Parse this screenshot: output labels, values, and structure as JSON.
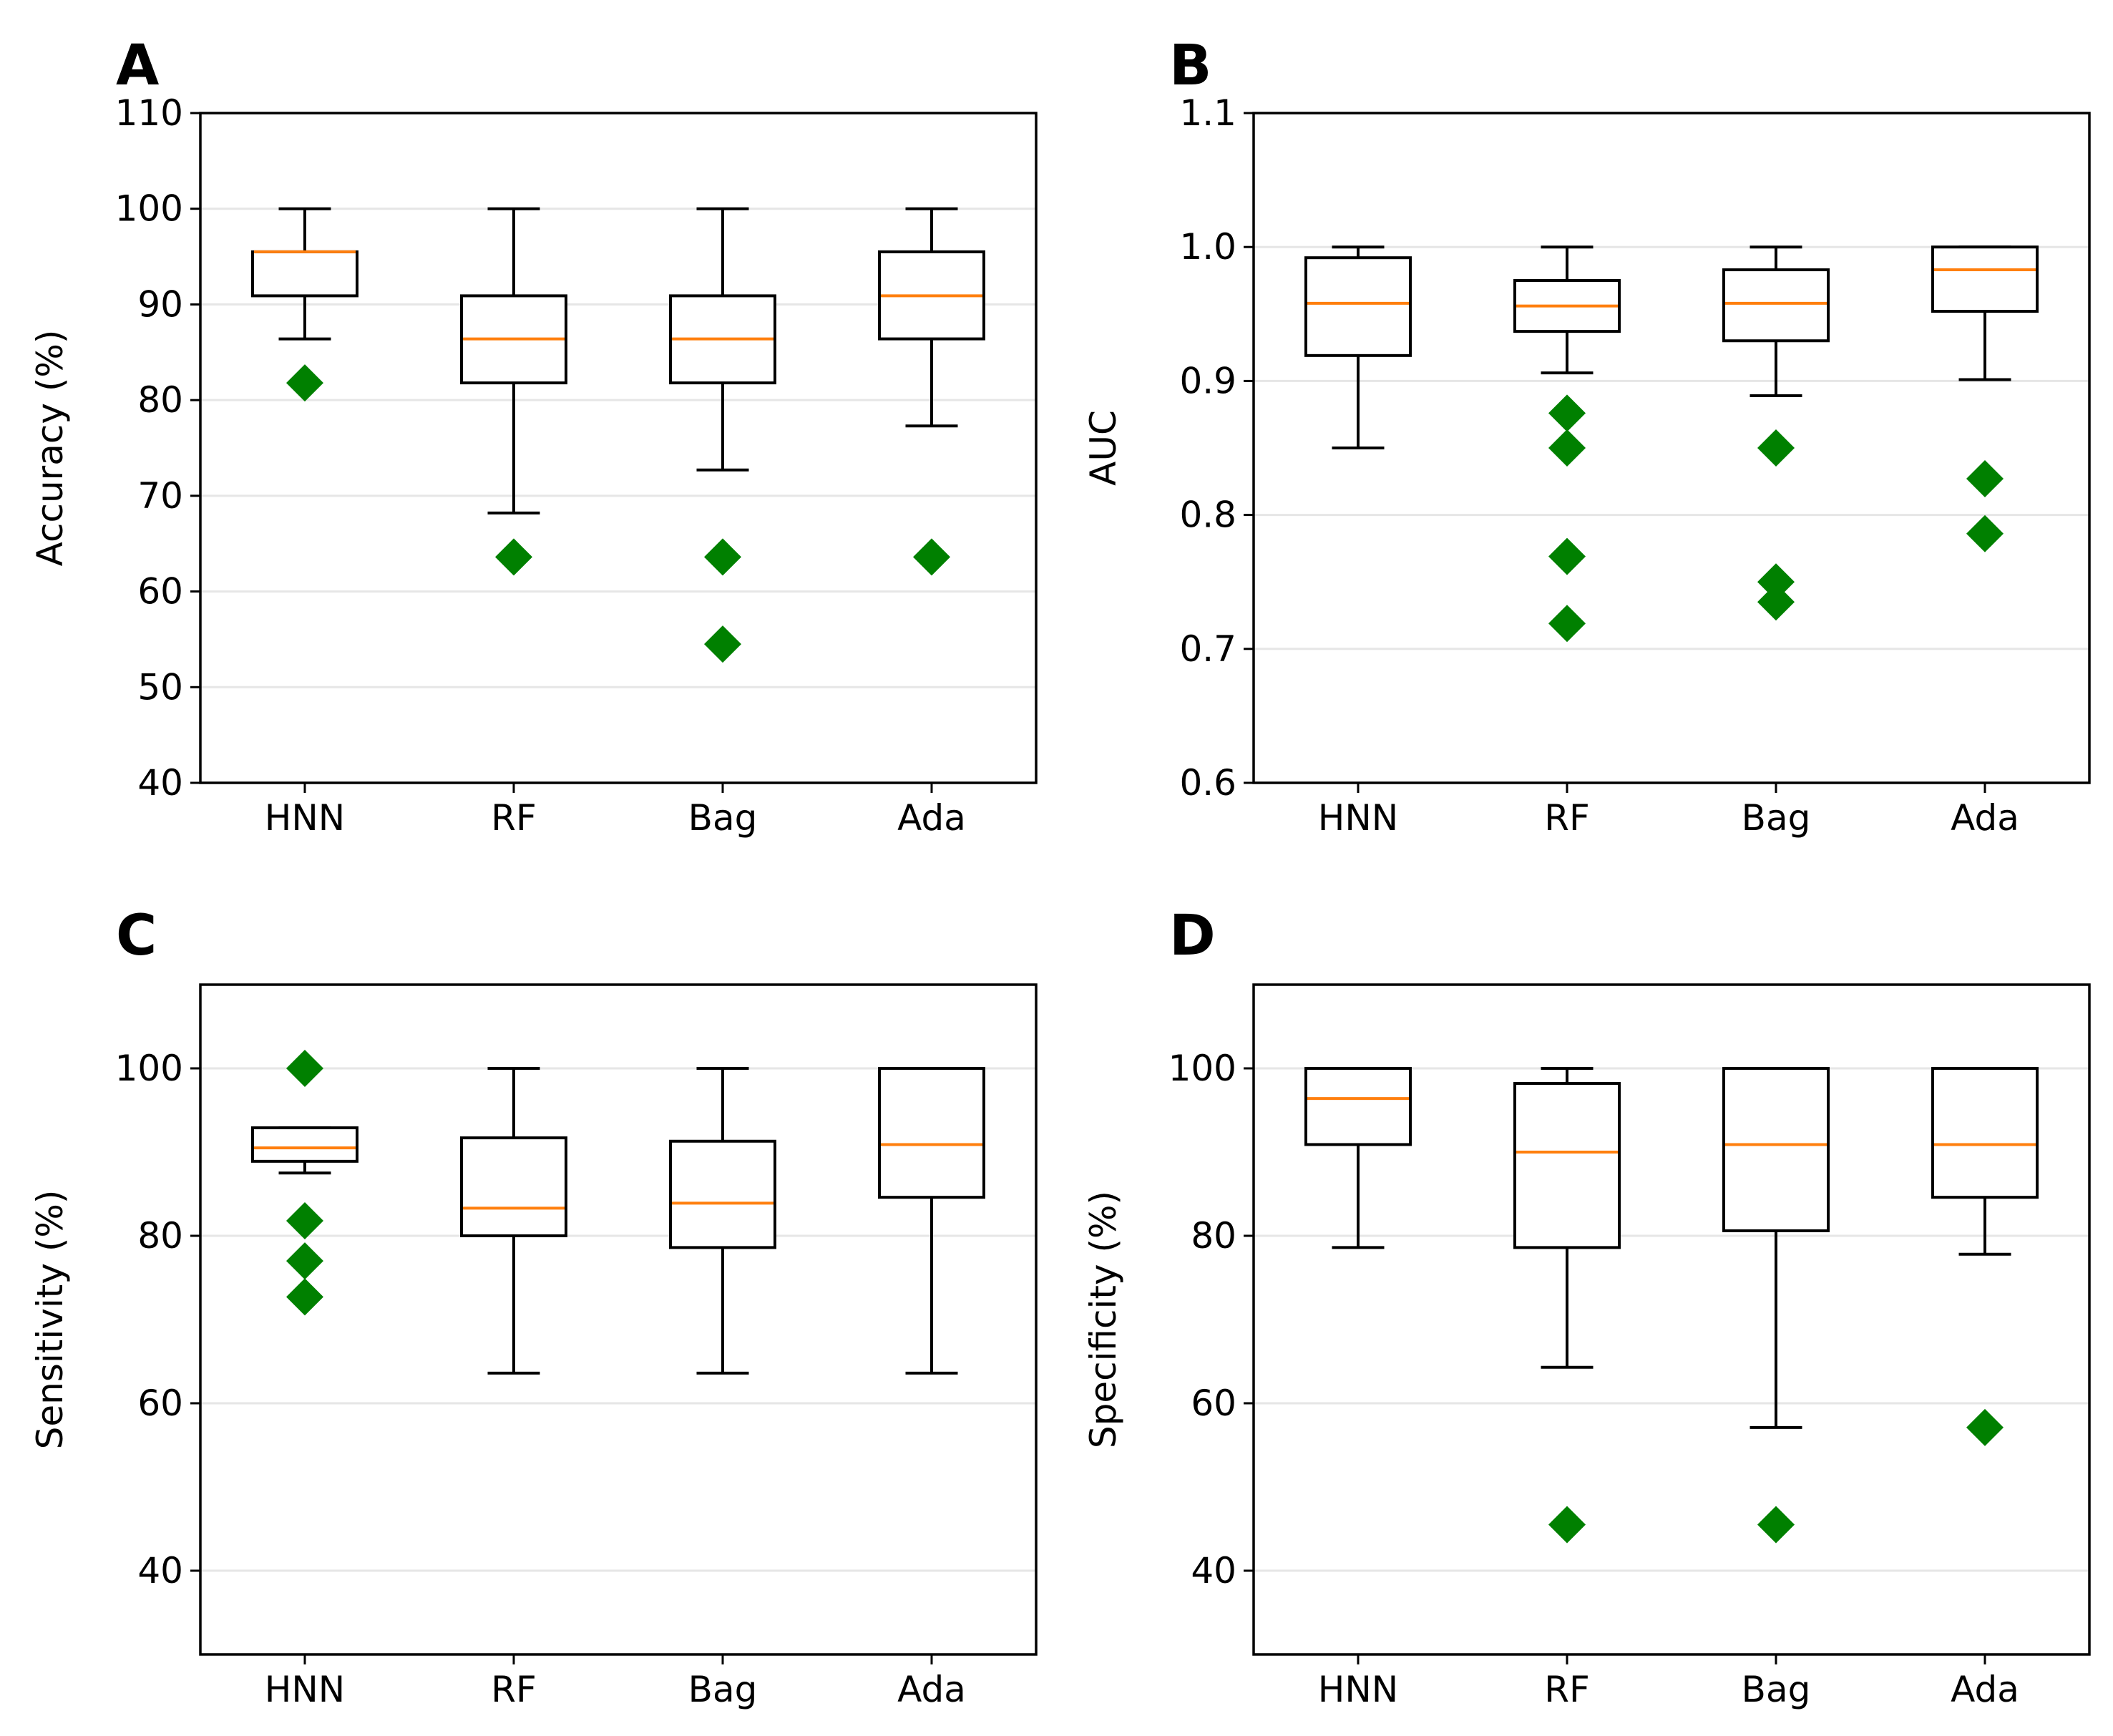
{
  "chart_data": [
    {
      "type": "box",
      "panel": "A",
      "ylabel": "Accuracy (%)",
      "ylim": [
        40,
        110
      ],
      "yticks": [
        40,
        50,
        60,
        70,
        80,
        90,
        100,
        110
      ],
      "grid": "horizontal",
      "categories": [
        "HNN",
        "RF",
        "Bag",
        "Ada"
      ],
      "boxes": [
        {
          "whislo": 86.4,
          "q1": 90.9,
          "med": 95.5,
          "q3": 95.5,
          "whishi": 100,
          "fliers": [
            81.8
          ]
        },
        {
          "whislo": 68.2,
          "q1": 81.8,
          "med": 86.4,
          "q3": 90.9,
          "whishi": 100,
          "fliers": [
            63.6
          ]
        },
        {
          "whislo": 72.7,
          "q1": 81.8,
          "med": 86.4,
          "q3": 90.9,
          "whishi": 100,
          "fliers": [
            63.6,
            54.5
          ]
        },
        {
          "whislo": 77.3,
          "q1": 86.4,
          "med": 90.9,
          "q3": 95.5,
          "whishi": 100,
          "fliers": [
            63.6
          ]
        }
      ]
    },
    {
      "type": "box",
      "panel": "B",
      "ylabel": "AUC",
      "ylim": [
        0.6,
        1.1
      ],
      "yticks": [
        0.6,
        0.7,
        0.8,
        0.9,
        1.0,
        1.1
      ],
      "ytick_labels": [
        "0.6",
        "0.7",
        "0.8",
        "0.9",
        "1.0",
        "1.1"
      ],
      "grid": "horizontal",
      "categories": [
        "HNN",
        "RF",
        "Bag",
        "Ada"
      ],
      "boxes": [
        {
          "whislo": 0.85,
          "q1": 0.919,
          "med": 0.958,
          "q3": 0.992,
          "whishi": 1.0,
          "fliers": []
        },
        {
          "whislo": 0.906,
          "q1": 0.937,
          "med": 0.956,
          "q3": 0.975,
          "whishi": 1.0,
          "fliers": [
            0.876,
            0.85,
            0.769,
            0.719
          ]
        },
        {
          "whislo": 0.889,
          "q1": 0.93,
          "med": 0.958,
          "q3": 0.983,
          "whishi": 1.0,
          "fliers": [
            0.85,
            0.75,
            0.735
          ]
        },
        {
          "whislo": 0.901,
          "q1": 0.952,
          "med": 0.983,
          "q3": 1.0,
          "whishi": 1.0,
          "fliers": [
            0.827,
            0.786
          ]
        }
      ]
    },
    {
      "type": "box",
      "panel": "C",
      "ylabel": "Sensitivity (%)",
      "ylim": [
        30,
        110
      ],
      "yticks": [
        40,
        60,
        80,
        100
      ],
      "grid": "horizontal",
      "categories": [
        "HNN",
        "RF",
        "Bag",
        "Ada"
      ],
      "boxes": [
        {
          "whislo": 87.5,
          "q1": 88.9,
          "med": 90.5,
          "q3": 92.9,
          "whishi": 92.9,
          "fliers": [
            100,
            81.8,
            77.0,
            72.7
          ]
        },
        {
          "whislo": 63.6,
          "q1": 80.0,
          "med": 83.3,
          "q3": 91.7,
          "whishi": 100,
          "fliers": []
        },
        {
          "whislo": 63.6,
          "q1": 78.6,
          "med": 83.9,
          "q3": 91.3,
          "whishi": 100,
          "fliers": []
        },
        {
          "whislo": 63.6,
          "q1": 84.6,
          "med": 90.9,
          "q3": 100,
          "whishi": 100,
          "fliers": []
        }
      ]
    },
    {
      "type": "box",
      "panel": "D",
      "ylabel": "Specificity (%)",
      "ylim": [
        30,
        110
      ],
      "yticks": [
        40,
        60,
        80,
        100
      ],
      "grid": "horizontal",
      "categories": [
        "HNN",
        "RF",
        "Bag",
        "Ada"
      ],
      "boxes": [
        {
          "whislo": 78.6,
          "q1": 90.9,
          "med": 96.4,
          "q3": 100,
          "whishi": 100,
          "fliers": []
        },
        {
          "whislo": 64.3,
          "q1": 78.6,
          "med": 90.0,
          "q3": 98.2,
          "whishi": 100,
          "fliers": [
            45.5
          ]
        },
        {
          "whislo": 57.1,
          "q1": 80.6,
          "med": 90.9,
          "q3": 100,
          "whishi": 100,
          "fliers": [
            45.5
          ]
        },
        {
          "whislo": 77.8,
          "q1": 84.6,
          "med": 90.9,
          "q3": 100,
          "whishi": 100,
          "fliers": [
            57.1
          ]
        }
      ]
    }
  ]
}
